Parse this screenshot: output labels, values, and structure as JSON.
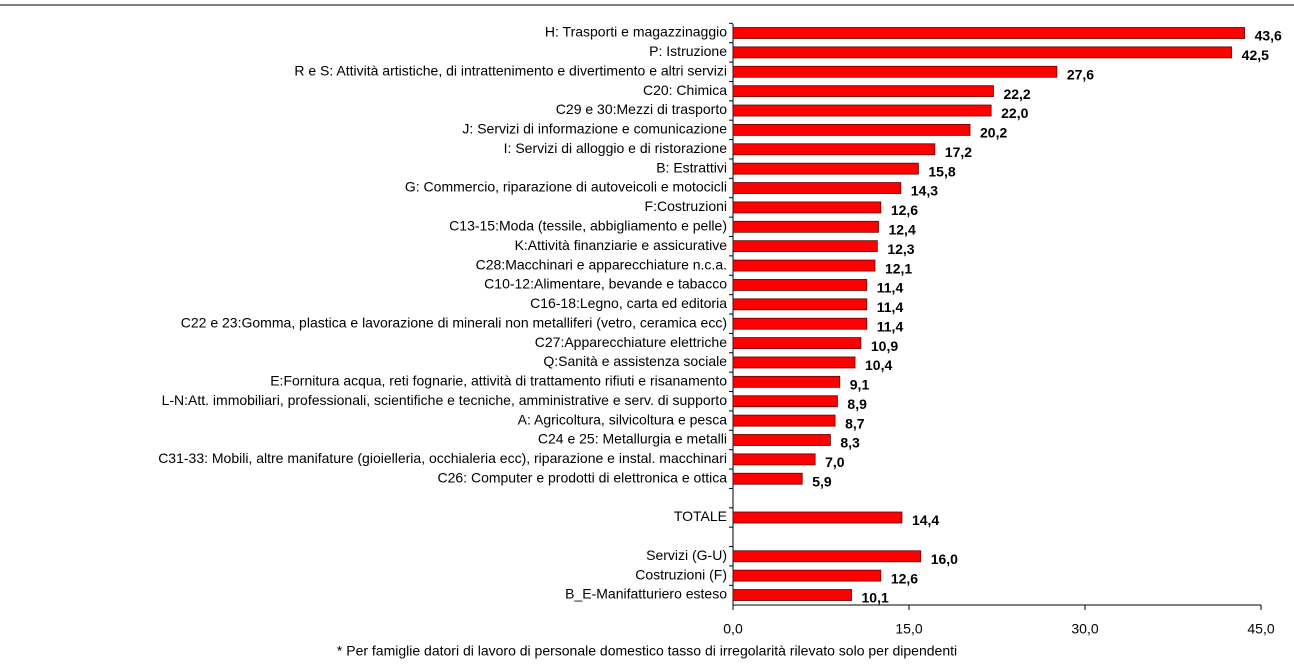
{
  "chart_data": {
    "type": "hbar",
    "categories": [
      "H: Trasporti e magazzinaggio",
      "P: Istruzione",
      "R e S: Attività artistiche, di intrattenimento e divertimento e altri servizi",
      "C20: Chimica",
      "C29 e 30:Mezzi di trasporto",
      "J: Servizi di informazione e comunicazione",
      "I: Servizi di alloggio e di ristorazione",
      "B: Estrattivi",
      "G: Commercio, riparazione di autoveicoli e motocicli",
      "F:Costruzioni",
      "C13-15:Moda (tessile, abbigliamento e pelle)",
      "K:Attività finanziarie e assicurative",
      "C28:Macchinari e apparecchiature n.c.a.",
      "C10-12:Alimentare, bevande e tabacco",
      "C16-18:Legno, carta ed editoria",
      "C22 e 23:Gomma, plastica e lavorazione di minerali non metalliferi (vetro, ceramica ecc)",
      "C27:Apparecchiature elettriche",
      "Q:Sanità e assistenza sociale",
      "E:Fornitura acqua, reti fognarie, attività di trattamento rifiuti e risanamento",
      "L-N:Att. immobiliari, professionali, scientifiche e tecniche, amministrative e serv. di supporto",
      "A: Agricoltura, silvicoltura e pesca",
      "C24 e 25: Metallurgia e metalli",
      "C31-33: Mobili, altre manifature (gioielleria, occhialeria ecc), riparazione e instal. macchinari",
      "C26: Computer e prodotti di elettronica e ottica",
      null,
      "TOTALE",
      null,
      "Servizi (G-U)",
      "Costruzioni (F)",
      "B_E-Manifatturiero esteso"
    ],
    "values": [
      43.6,
      42.5,
      27.6,
      22.2,
      22.0,
      20.2,
      17.2,
      15.8,
      14.3,
      12.6,
      12.4,
      12.3,
      12.1,
      11.4,
      11.4,
      11.4,
      10.9,
      10.4,
      9.1,
      8.9,
      8.7,
      8.3,
      7.0,
      5.9,
      null,
      14.4,
      null,
      16.0,
      12.6,
      10.1
    ],
    "value_labels": [
      "43,6",
      "42,5",
      "27,6",
      "22,2",
      "22,0",
      "20,2",
      "17,2",
      "15,8",
      "14,3",
      "12,6",
      "12,4",
      "12,3",
      "12,1",
      "11,4",
      "11,4",
      "11,4",
      "10,9",
      "10,4",
      "9,1",
      "8,9",
      "8,7",
      "8,3",
      "7,0",
      "5,9",
      null,
      "14,4",
      null,
      "16,0",
      "12,6",
      "10,1"
    ],
    "color": "#ff0000",
    "xlim": [
      0,
      45
    ],
    "xticks": [
      {
        "value": 0,
        "label": "0,0"
      },
      {
        "value": 15,
        "label": "15,0"
      },
      {
        "value": 30,
        "label": "30,0"
      },
      {
        "value": 45,
        "label": "45,0"
      }
    ],
    "footnote": "* Per famiglie datori di lavoro di personale domestico tasso di irregolarità rilevato solo per dipendenti"
  }
}
